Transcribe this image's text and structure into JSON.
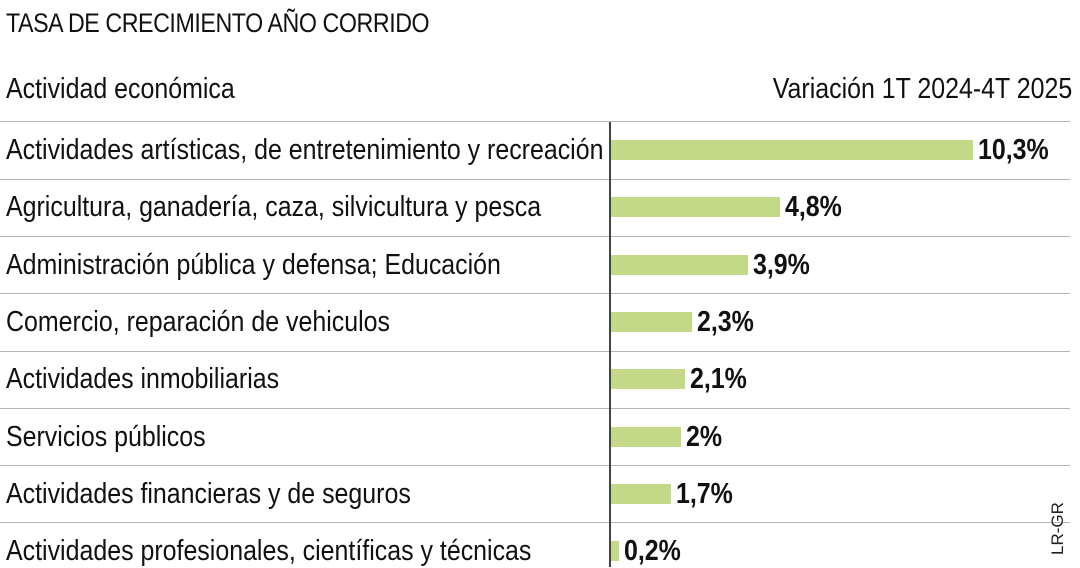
{
  "title": "TASA DE CRECIMIENTO AÑO CORRIDO",
  "header_left": "Actividad económica",
  "header_right": "Variación 1T 2024-4T 2025",
  "source": "LR-GR",
  "colors": {
    "bar": "#c4d987",
    "axis": "#444444",
    "separator": "#b5b5b5"
  },
  "chart_data": {
    "type": "bar",
    "orientation": "horizontal",
    "title": "TASA DE CRECIMIENTO AÑO CORRIDO",
    "categories": [
      "Actividades artísticas, de entretenimiento y recreación",
      "Agricultura, ganadería, caza, silvicultura y pesca",
      "Administración pública y defensa; Educación",
      "Comercio, reparación de vehiculos",
      "Actividades inmobiliarias",
      "Servicios públicos",
      "Actividades financieras y de seguros",
      "Actividades profesionales, científicas y técnicas"
    ],
    "values": [
      10.3,
      4.8,
      3.9,
      2.3,
      2.1,
      2.0,
      1.7,
      0.2
    ],
    "value_labels": [
      "10,3%",
      "4,8%",
      "3,9%",
      "2,3%",
      "2,1%",
      "2%",
      "1,7%",
      "0,2%"
    ],
    "xlim": [
      0,
      10.3
    ],
    "grid": false,
    "legend": "none"
  }
}
